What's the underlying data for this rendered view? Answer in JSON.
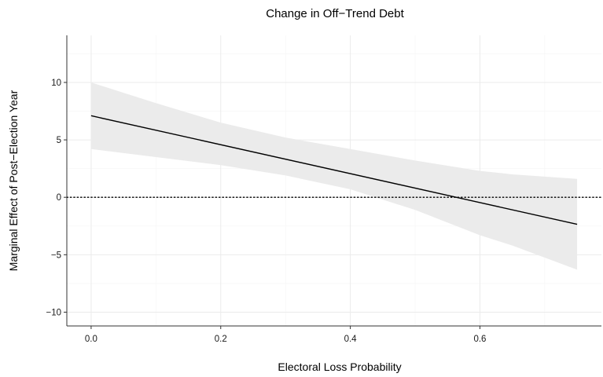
{
  "chart_data": {
    "type": "line",
    "title": "Change in Off−Trend Debt",
    "xlabel": "Electoral Loss Probability",
    "ylabel": "Marginal Effect of Post−Election Year",
    "xlim": [
      -0.0375,
      0.7875
    ],
    "ylim": [
      -11.2,
      14.1
    ],
    "x_ticks": [
      0.0,
      0.2,
      0.4,
      0.6
    ],
    "x_tick_labels": [
      "0.0",
      "0.2",
      "0.4",
      "0.6"
    ],
    "y_ticks": [
      10,
      5,
      0,
      -5,
      -10
    ],
    "y_tick_labels": [
      "10",
      "5",
      "0",
      "−5",
      "−10"
    ],
    "grid": true,
    "reference_line": {
      "y": 0,
      "style": "dotted"
    },
    "series": [
      {
        "x": [
          0.0,
          0.75
        ],
        "y": [
          7.1,
          -2.35
        ]
      }
    ],
    "confidence_band": {
      "x": [
        0.0,
        0.1,
        0.2,
        0.3,
        0.4,
        0.5,
        0.6,
        0.65,
        0.75
      ],
      "lower": [
        4.2,
        3.5,
        2.8,
        1.9,
        0.7,
        -1.1,
        -3.3,
        -4.2,
        -6.3
      ],
      "upper": [
        10.0,
        8.2,
        6.5,
        5.2,
        4.2,
        3.2,
        2.3,
        2.0,
        1.6
      ]
    },
    "colors": {
      "line": "#000000",
      "band": "#ebebeb",
      "grid_major": "#ebebeb",
      "grid_minor": "#f5f5f5",
      "axis": "#333333"
    }
  }
}
